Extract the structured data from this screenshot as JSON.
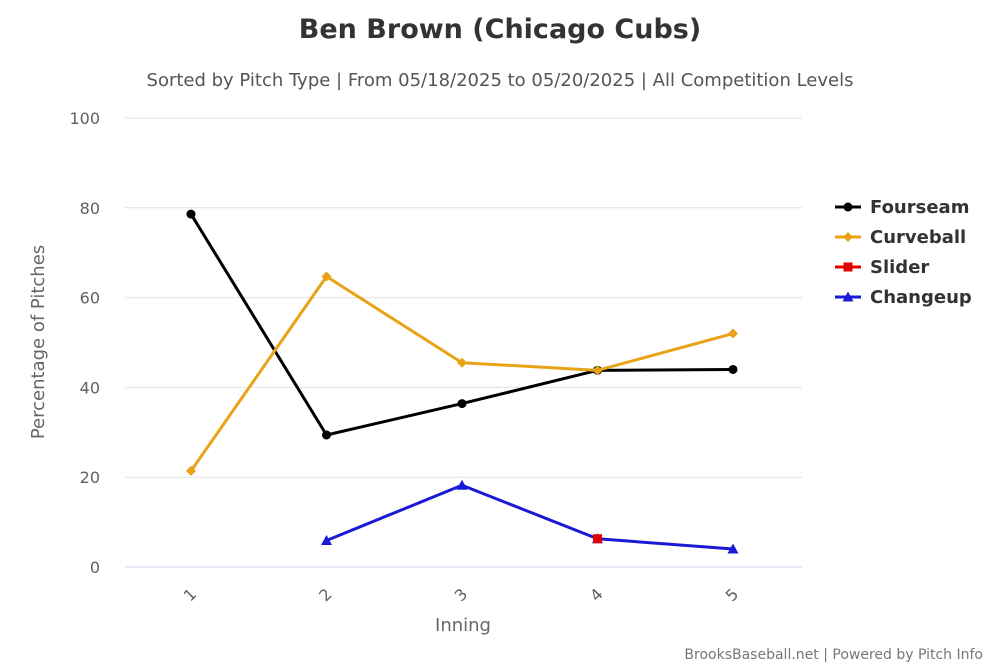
{
  "chart_data": {
    "type": "line",
    "title": "Ben Brown (Chicago Cubs)",
    "subtitle": "Sorted by Pitch Type | From 05/18/2025 to 05/20/2025 | All Competition Levels",
    "xlabel": "Inning",
    "ylabel": "Percentage of Pitches",
    "categories": [
      "1",
      "2",
      "3",
      "4",
      "5"
    ],
    "ylim": [
      0,
      100
    ],
    "yticks": [
      "0",
      "20",
      "40",
      "60",
      "80",
      "100"
    ],
    "grid": true,
    "legend_position": "right",
    "series": [
      {
        "name": "Fourseam",
        "color": "#000000",
        "marker": "circle",
        "values": [
          78.6,
          29.4,
          36.4,
          43.8,
          44.0
        ]
      },
      {
        "name": "Curveball",
        "color": "#E8A317",
        "marker": "diamond",
        "values": [
          21.4,
          64.7,
          45.5,
          43.8,
          52.0
        ]
      },
      {
        "name": "Slider",
        "color": "#E00000",
        "marker": "square",
        "values": [
          null,
          null,
          null,
          6.3,
          null
        ]
      },
      {
        "name": "Changeup",
        "color": "#1A1AD6",
        "marker": "triangle",
        "values": [
          null,
          5.9,
          18.2,
          6.3,
          4.0
        ]
      }
    ]
  },
  "credit": "BrooksBaseball.net | Powered by Pitch Info"
}
